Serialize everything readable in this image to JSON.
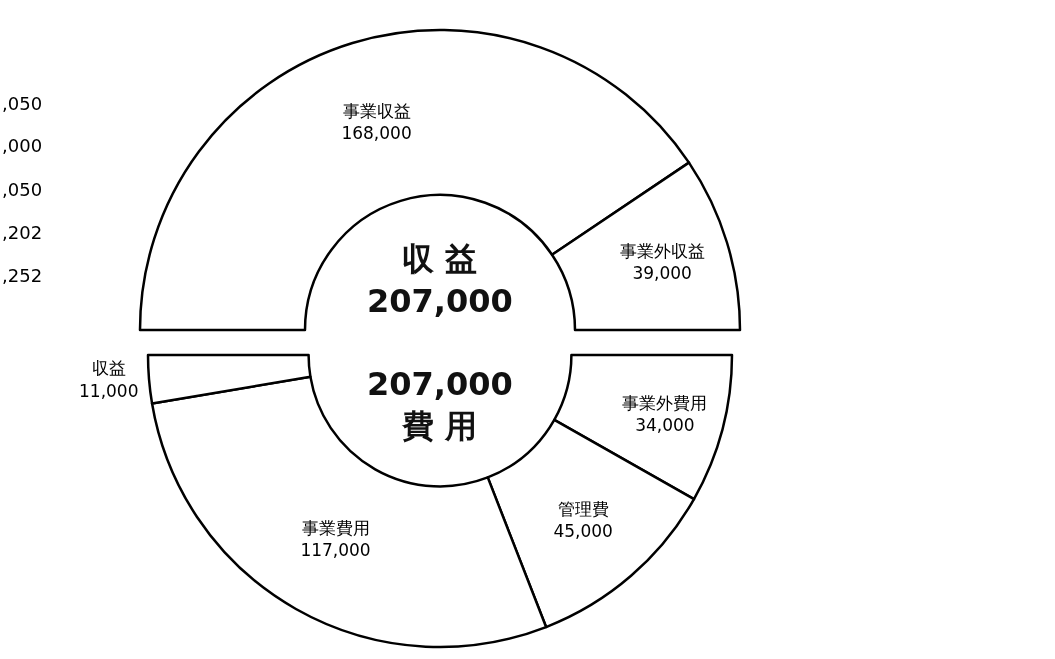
{
  "chart_data": [
    {
      "type": "donut",
      "title": "収 益\n207,000",
      "categories": [
        "事業収益",
        "事業外収益"
      ],
      "values": [
        168000,
        39000
      ],
      "value_labels": [
        "168,000",
        "39,000"
      ],
      "colors": [
        "#ffffff",
        "#ffffff"
      ],
      "legend": false,
      "annotations": [
        ",050",
        ",000",
        ",050",
        ",202",
        ",252"
      ]
    },
    {
      "type": "donut",
      "title": "207,000\n費 用",
      "categories": [
        "事業外費用",
        "管理費",
        "事業費用",
        "収益"
      ],
      "values": [
        34000,
        45000,
        117000,
        11000
      ],
      "value_labels": [
        "34,000",
        "45,000",
        "117,000",
        "11,000"
      ],
      "colors": [
        "#ffffff",
        "#ffffff",
        "#ffffff",
        "#ffffff"
      ],
      "legend": false
    }
  ]
}
